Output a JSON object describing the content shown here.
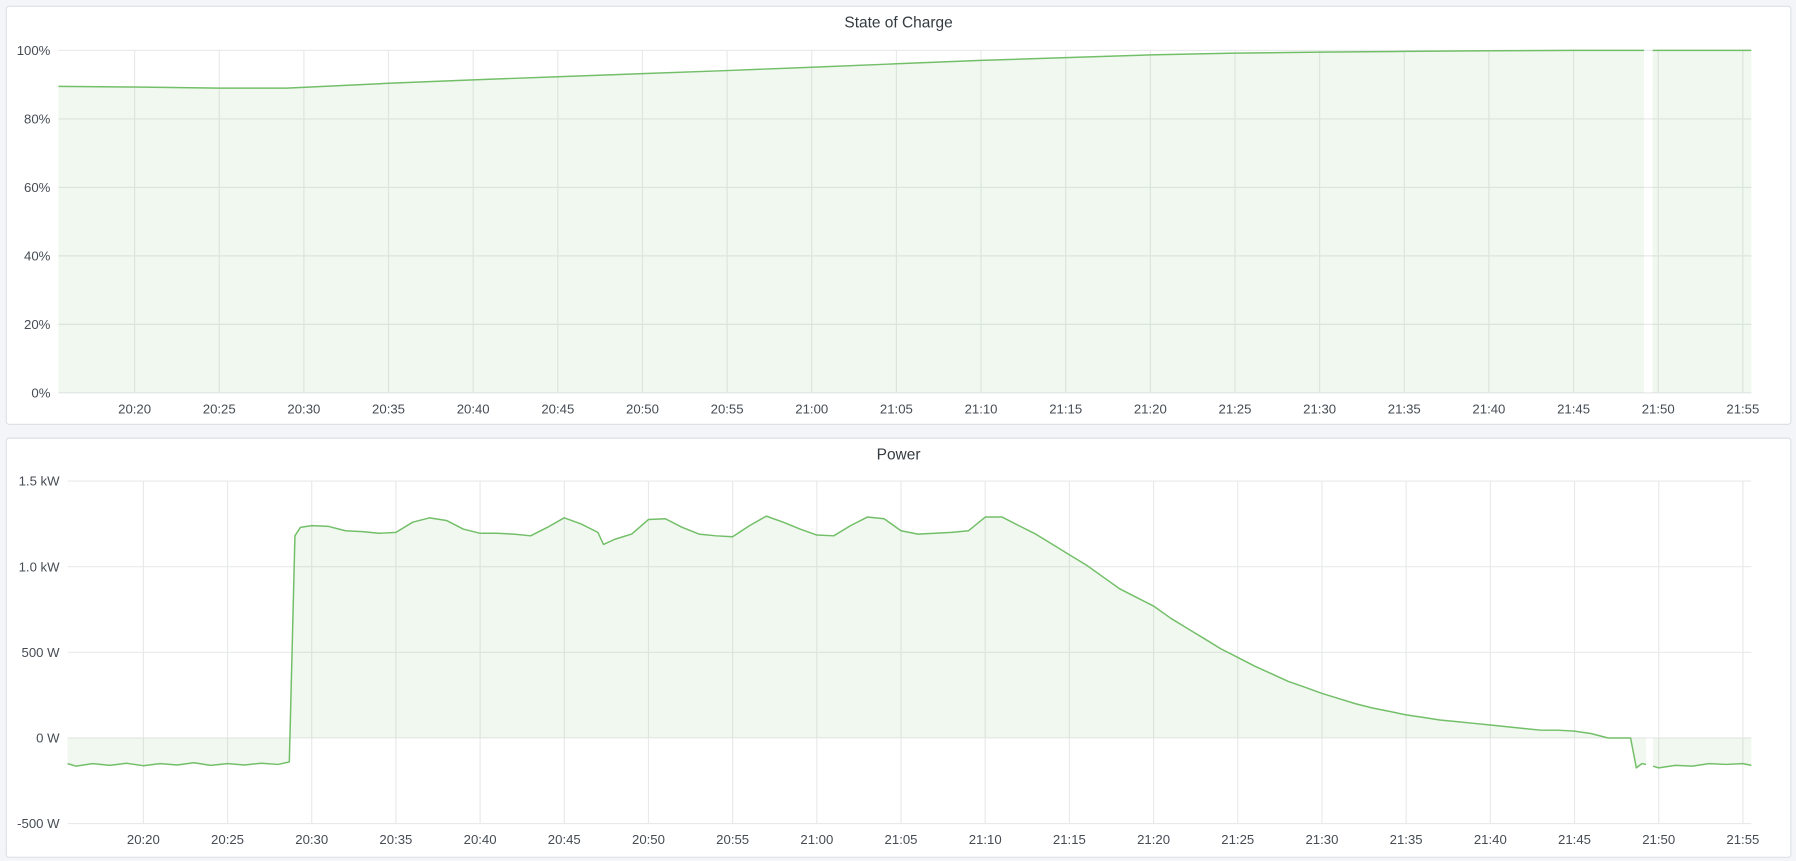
{
  "colors": {
    "line": "#73bf69",
    "fill": "rgba(115,191,105,0.11)",
    "grid": "#e8e9eb",
    "text": "#464c54"
  },
  "chart_data": [
    {
      "type": "area",
      "title": "State of Charge",
      "x_range": [
        "20:15:30",
        "21:55:30"
      ],
      "x_ticks": [
        "20:20",
        "20:25",
        "20:30",
        "20:35",
        "20:40",
        "20:45",
        "20:50",
        "20:55",
        "21:00",
        "21:05",
        "21:10",
        "21:15",
        "21:20",
        "21:25",
        "21:30",
        "21:35",
        "21:40",
        "21:45",
        "21:50",
        "21:55"
      ],
      "y_range": [
        0,
        100
      ],
      "y_ticks": [
        0,
        20,
        40,
        60,
        80,
        100
      ],
      "y_tick_labels": [
        "0%",
        "20%",
        "40%",
        "60%",
        "80%",
        "100%"
      ],
      "grid": true,
      "points": [
        [
          "20:15:30",
          89.5
        ],
        [
          "20:20",
          89.3
        ],
        [
          "20:25",
          89.0
        ],
        [
          "20:29",
          89.0
        ],
        [
          "20:35",
          90.4
        ],
        [
          "20:40",
          91.4
        ],
        [
          "20:45",
          92.3
        ],
        [
          "20:50",
          93.2
        ],
        [
          "20:55",
          94.1
        ],
        [
          "21:00",
          95.1
        ],
        [
          "21:05",
          96.1
        ],
        [
          "21:10",
          97.1
        ],
        [
          "21:15",
          97.9
        ],
        [
          "21:20",
          98.7
        ],
        [
          "21:25",
          99.2
        ],
        [
          "21:30",
          99.5
        ],
        [
          "21:35",
          99.7
        ],
        [
          "21:40",
          99.9
        ],
        [
          "21:45",
          100
        ],
        [
          "21:49:10",
          100
        ],
        [
          "21:49:20",
          null
        ],
        [
          "21:49:40",
          100
        ],
        [
          "21:55:30",
          100
        ]
      ]
    },
    {
      "type": "area",
      "title": "Power",
      "x_range": [
        "20:15:30",
        "21:55:30"
      ],
      "x_ticks": [
        "20:20",
        "20:25",
        "20:30",
        "20:35",
        "20:40",
        "20:45",
        "20:50",
        "20:55",
        "21:00",
        "21:05",
        "21:10",
        "21:15",
        "21:20",
        "21:25",
        "21:30",
        "21:35",
        "21:40",
        "21:45",
        "21:50",
        "21:55"
      ],
      "y_range": [
        -500,
        1500
      ],
      "y_ticks": [
        -500,
        0,
        500,
        1000,
        1500
      ],
      "y_tick_labels": [
        "-500 W",
        "0 W",
        "500 W",
        "1.0 kW",
        "1.5 kW"
      ],
      "grid": true,
      "points": [
        [
          "20:15:30",
          -150
        ],
        [
          "20:16",
          -165
        ],
        [
          "20:17",
          -150
        ],
        [
          "20:18",
          -160
        ],
        [
          "20:19",
          -148
        ],
        [
          "20:20",
          -162
        ],
        [
          "20:21",
          -150
        ],
        [
          "20:22",
          -158
        ],
        [
          "20:23",
          -145
        ],
        [
          "20:24",
          -160
        ],
        [
          "20:25",
          -150
        ],
        [
          "20:26",
          -158
        ],
        [
          "20:27",
          -148
        ],
        [
          "20:28",
          -155
        ],
        [
          "20:28:40",
          -140
        ],
        [
          "20:29",
          1180
        ],
        [
          "20:29:20",
          1230
        ],
        [
          "20:30",
          1240
        ],
        [
          "20:31",
          1235
        ],
        [
          "20:32",
          1210
        ],
        [
          "20:33",
          1205
        ],
        [
          "20:34",
          1195
        ],
        [
          "20:35",
          1200
        ],
        [
          "20:36",
          1260
        ],
        [
          "20:37",
          1285
        ],
        [
          "20:38",
          1270
        ],
        [
          "20:39",
          1220
        ],
        [
          "20:40",
          1195
        ],
        [
          "20:41",
          1195
        ],
        [
          "20:42",
          1190
        ],
        [
          "20:43",
          1180
        ],
        [
          "20:44",
          1230
        ],
        [
          "20:45",
          1285
        ],
        [
          "20:46",
          1250
        ],
        [
          "20:47",
          1200
        ],
        [
          "20:47:20",
          1130
        ],
        [
          "20:48",
          1160
        ],
        [
          "20:49",
          1190
        ],
        [
          "20:50",
          1275
        ],
        [
          "20:51",
          1280
        ],
        [
          "20:52",
          1230
        ],
        [
          "20:53",
          1190
        ],
        [
          "20:54",
          1180
        ],
        [
          "20:55",
          1175
        ],
        [
          "20:56",
          1240
        ],
        [
          "20:57",
          1295
        ],
        [
          "20:58",
          1260
        ],
        [
          "20:59",
          1220
        ],
        [
          "21:00",
          1185
        ],
        [
          "21:01",
          1180
        ],
        [
          "21:02",
          1240
        ],
        [
          "21:03",
          1290
        ],
        [
          "21:04",
          1280
        ],
        [
          "21:05",
          1210
        ],
        [
          "21:06",
          1190
        ],
        [
          "21:07",
          1195
        ],
        [
          "21:08",
          1200
        ],
        [
          "21:09",
          1210
        ],
        [
          "21:10",
          1290
        ],
        [
          "21:11",
          1290
        ],
        [
          "21:12",
          1240
        ],
        [
          "21:13",
          1190
        ],
        [
          "21:14",
          1130
        ],
        [
          "21:15",
          1070
        ],
        [
          "21:16",
          1010
        ],
        [
          "21:17",
          940
        ],
        [
          "21:18",
          870
        ],
        [
          "21:19",
          820
        ],
        [
          "21:20",
          770
        ],
        [
          "21:21",
          700
        ],
        [
          "21:22",
          640
        ],
        [
          "21:23",
          580
        ],
        [
          "21:24",
          520
        ],
        [
          "21:25",
          470
        ],
        [
          "21:26",
          420
        ],
        [
          "21:27",
          375
        ],
        [
          "21:28",
          330
        ],
        [
          "21:29",
          295
        ],
        [
          "21:30",
          260
        ],
        [
          "21:31",
          230
        ],
        [
          "21:32",
          200
        ],
        [
          "21:33",
          175
        ],
        [
          "21:34",
          155
        ],
        [
          "21:35",
          135
        ],
        [
          "21:36",
          120
        ],
        [
          "21:37",
          105
        ],
        [
          "21:38",
          95
        ],
        [
          "21:39",
          85
        ],
        [
          "21:40",
          75
        ],
        [
          "21:41",
          65
        ],
        [
          "21:42",
          55
        ],
        [
          "21:43",
          45
        ],
        [
          "21:44",
          45
        ],
        [
          "21:45",
          40
        ],
        [
          "21:46",
          25
        ],
        [
          "21:47",
          0
        ],
        [
          "21:48:20",
          0
        ],
        [
          "21:48:40",
          -175
        ],
        [
          "21:49",
          -150
        ],
        [
          "21:49:15",
          -155
        ],
        [
          "21:49:20",
          null
        ],
        [
          "21:49:40",
          -165
        ],
        [
          "21:50",
          -175
        ],
        [
          "21:51",
          -160
        ],
        [
          "21:52",
          -165
        ],
        [
          "21:53",
          -150
        ],
        [
          "21:54",
          -155
        ],
        [
          "21:55",
          -150
        ],
        [
          "21:55:30",
          -160
        ]
      ]
    }
  ]
}
